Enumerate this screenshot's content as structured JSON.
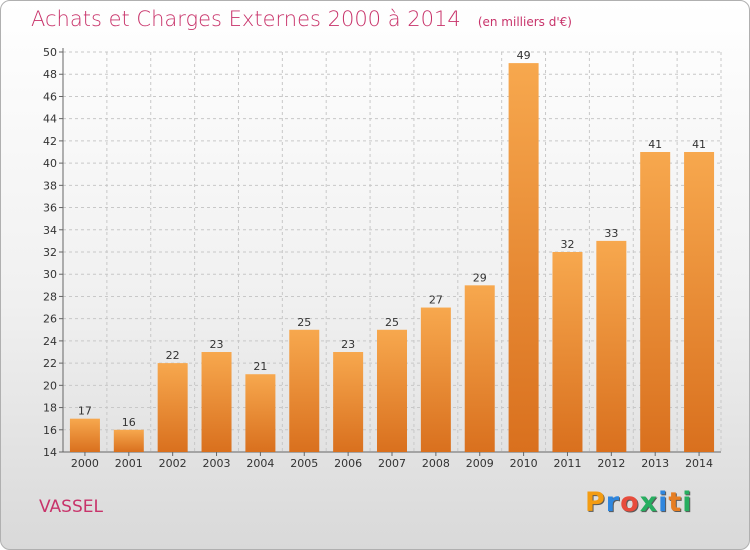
{
  "header": {
    "title": "Achats et Charges Externes 2000 à 2014",
    "unit": "(en milliers d'€)"
  },
  "commune": "VASSEL",
  "logo": {
    "letters": [
      "P",
      "r",
      "o",
      "x",
      "i",
      "t",
      "i"
    ],
    "colors": [
      "#f39c12",
      "#2e86de",
      "#e74c3c",
      "#27ae60",
      "#2e86de",
      "#e67e22",
      "#27ae60"
    ]
  },
  "colors": {
    "bar_light": "#f7a84e",
    "bar_dark": "#d9701e",
    "accent_text": "#c8336a",
    "grid": "#c8c8c8"
  },
  "chart_data": {
    "type": "bar",
    "categories": [
      "2000",
      "2001",
      "2002",
      "2003",
      "2004",
      "2005",
      "2006",
      "2007",
      "2008",
      "2009",
      "2010",
      "2011",
      "2012",
      "2013",
      "2014"
    ],
    "values": [
      17,
      16,
      22,
      23,
      21,
      25,
      23,
      25,
      27,
      29,
      49,
      32,
      33,
      41,
      41
    ],
    "data_labels": [
      "17",
      "16",
      "22",
      "23",
      "21",
      "25",
      "23",
      "25",
      "27",
      "29",
      "49",
      "32",
      "33",
      "41",
      "41"
    ],
    "yticks": [
      "14",
      "16",
      "18",
      "20",
      "22",
      "24",
      "26",
      "28",
      "30",
      "32",
      "34",
      "36",
      "38",
      "40",
      "42",
      "44",
      "46",
      "48",
      "50"
    ],
    "ylim": [
      14,
      50
    ],
    "grid": true,
    "title": "Achats et Charges Externes 2000 à 2014",
    "xlabel": "",
    "ylabel": ""
  }
}
